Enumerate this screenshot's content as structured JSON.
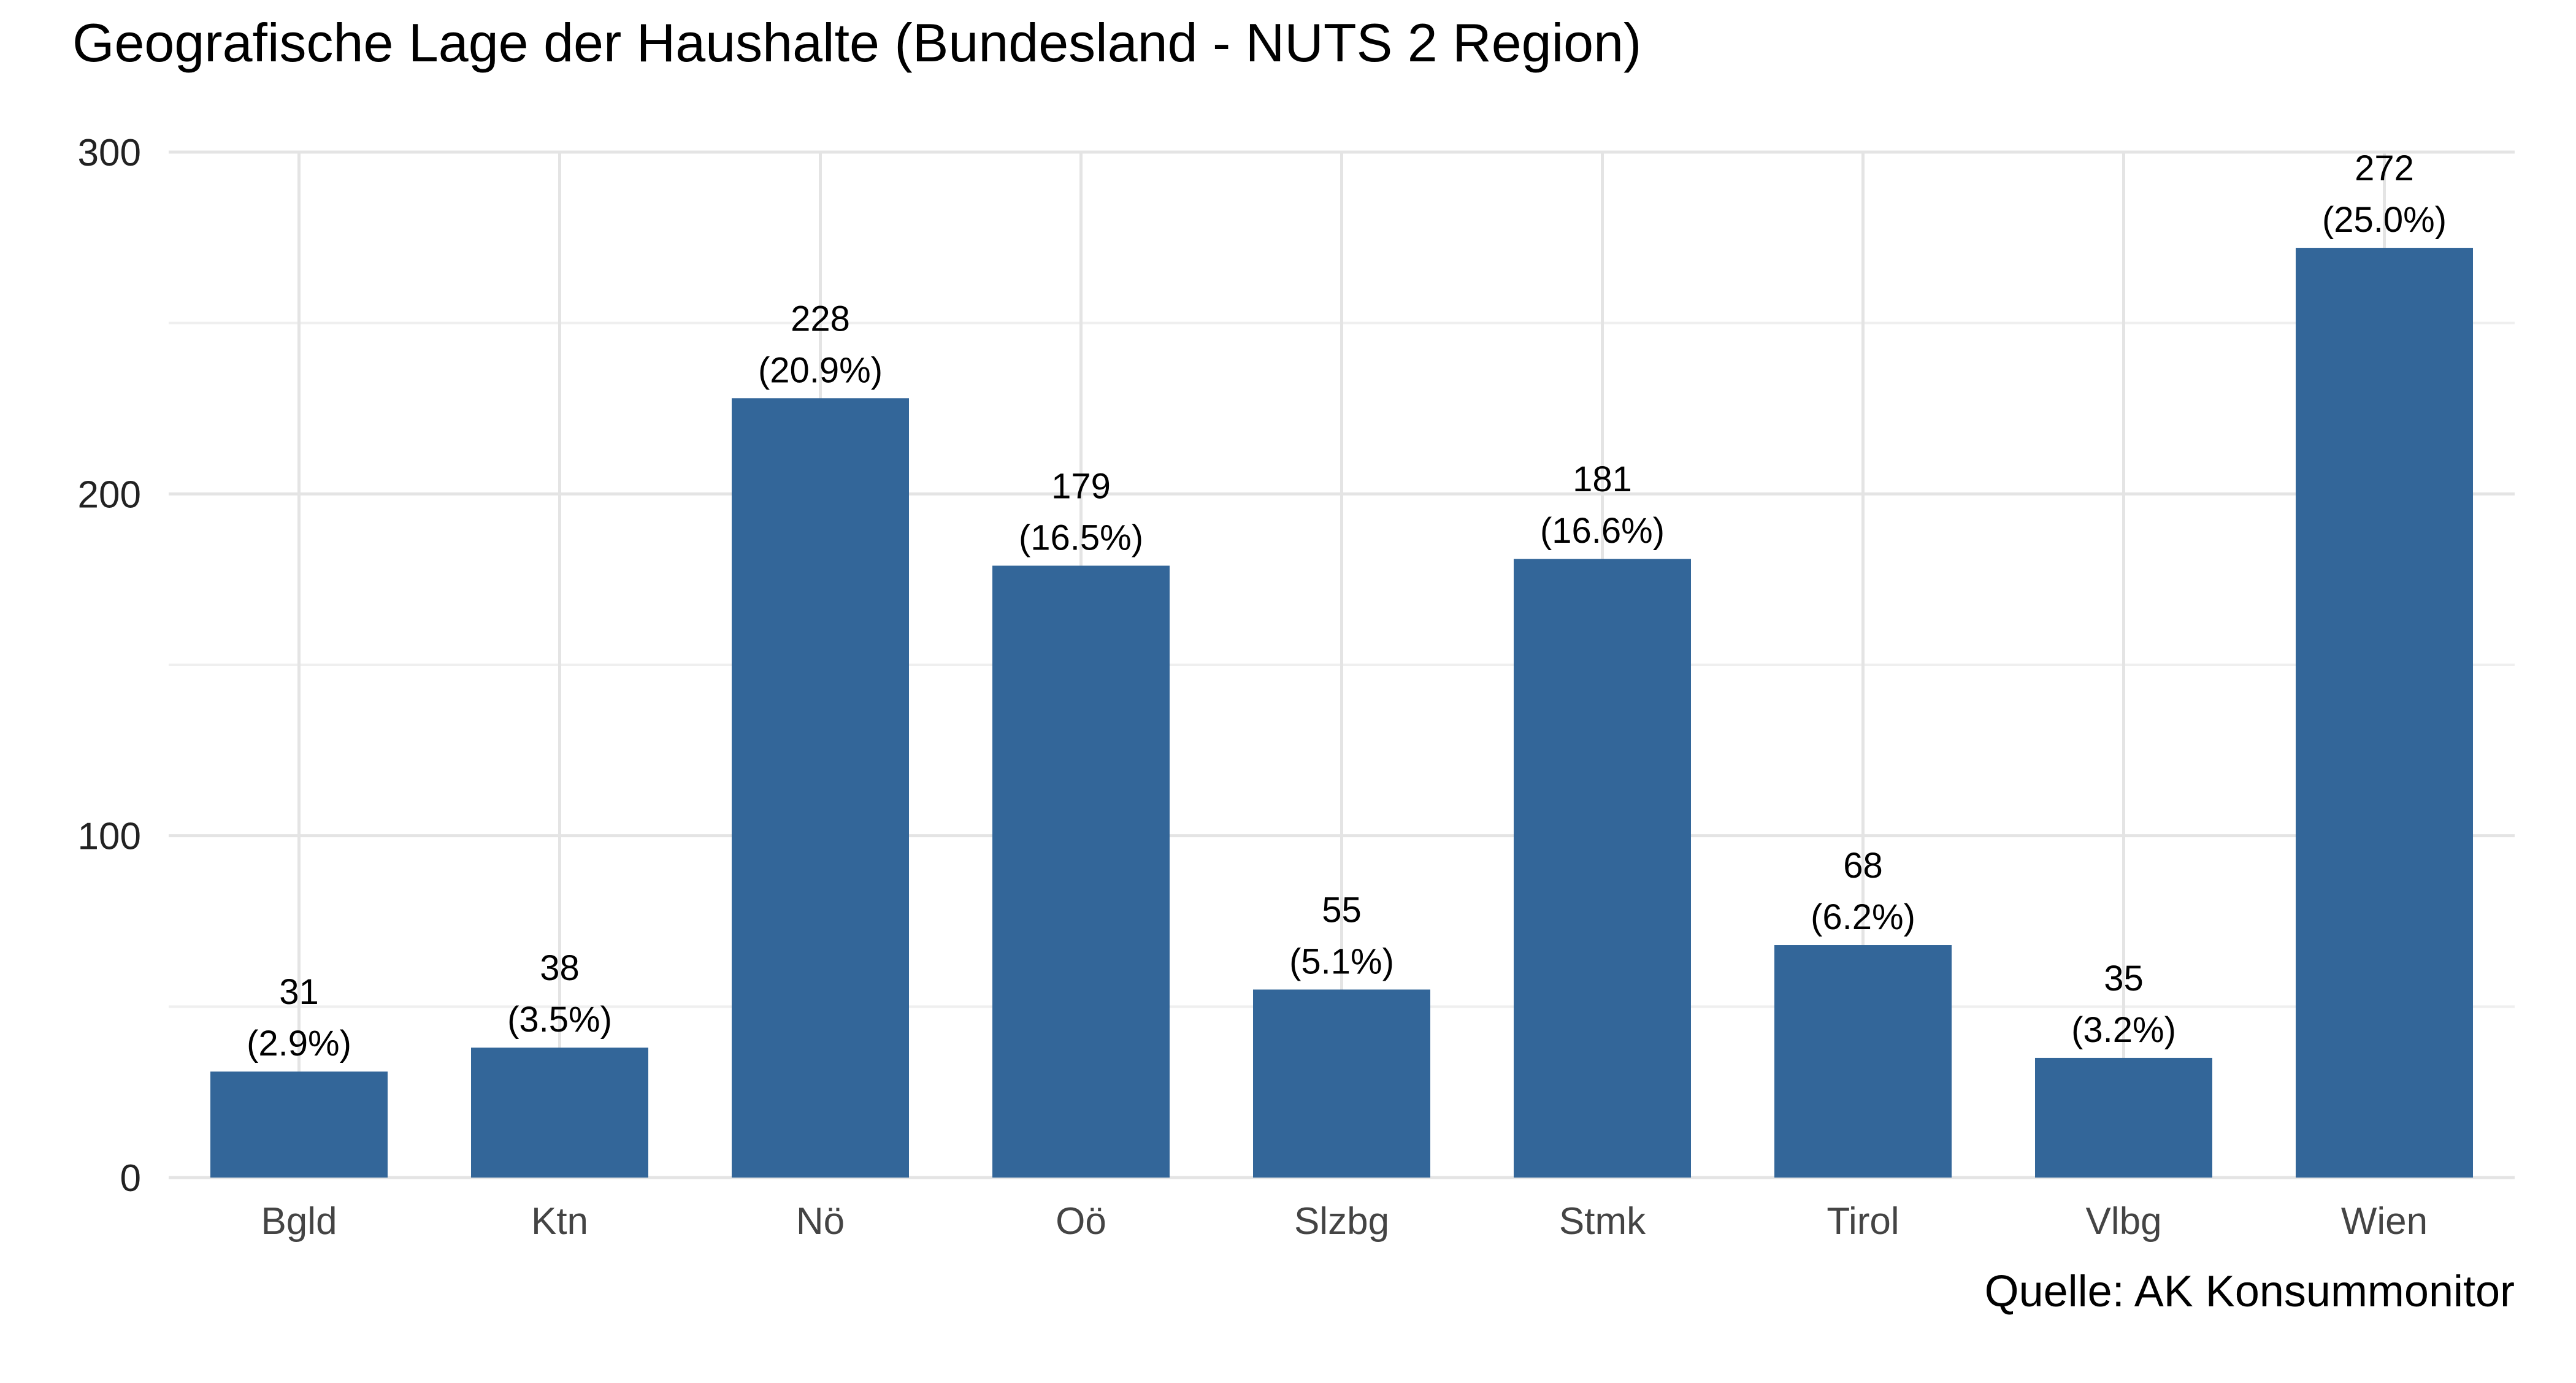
{
  "chart_data": {
    "type": "bar",
    "title": "Geografische Lage der Haushalte (Bundesland - NUTS 2 Region)",
    "caption": "Quelle: AK Konsummonitor",
    "xlabel": "",
    "ylabel": "",
    "categories": [
      "Bgld",
      "Ktn",
      "Nö",
      "Oö",
      "Slzbg",
      "Stmk",
      "Tirol",
      "Vlbg",
      "Wien"
    ],
    "values": [
      31,
      38,
      228,
      179,
      55,
      181,
      68,
      35,
      272
    ],
    "value_labels": [
      "31",
      "38",
      "228",
      "179",
      "55",
      "181",
      "68",
      "35",
      "272"
    ],
    "percent_labels": [
      "(2.9%)",
      "(3.5%)",
      "(20.9%)",
      "(16.5%)",
      "(5.1%)",
      "(16.6%)",
      "(6.2%)",
      "(3.2%)",
      "(25.0%)"
    ],
    "ylim": [
      0,
      300
    ],
    "yticks": [
      0,
      100,
      200,
      300
    ],
    "ytick_labels": [
      "0",
      "100",
      "200",
      "300"
    ],
    "grid": true,
    "legend": "none",
    "bar_color": "#336699"
  }
}
